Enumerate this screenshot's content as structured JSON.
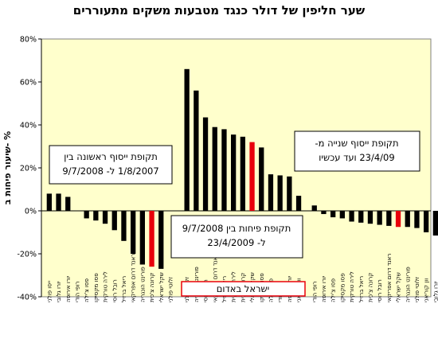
{
  "chart_data": {
    "type": "bar",
    "title": "שער חליפין של דולר כנגד מטבעות משקים מתעוררים",
    "ylabel": "שיעור פיחות ב- %",
    "ylim": [
      -40,
      80
    ],
    "yticks": [
      "80%",
      "60%",
      "40%",
      "20%",
      "0%",
      "-20%",
      "-40%"
    ],
    "grid": false,
    "panels": [
      {
        "name": "תקופת ייסוף ראשונה",
        "categories": [
          "ייסו פולני",
          "יורו גלובי",
          "יורו אירופה",
          "רופי הודי",
          "פסו צ'ילה",
          "פסו מקסיקו",
          "לירה טורקית",
          "רובל רוסי",
          "ריאל ברזיל",
          "ראנד דרום אפריקאי",
          "פורינט הונגריה",
          "קרונה צ'כית",
          "שקל ישראלי",
          "זלוטי פולני"
        ],
        "values": [
          8,
          8,
          6.5,
          0,
          -3.5,
          -4.5,
          -6,
          -9,
          -14,
          -20,
          -25,
          -26,
          -27,
          0
        ],
        "highlight": [
          false,
          false,
          false,
          false,
          false,
          false,
          false,
          false,
          false,
          false,
          false,
          true,
          false,
          false
        ]
      },
      {
        "name": "תקופת פיחות",
        "categories": [
          "זלוטי פולני",
          "פורינט הונגריה",
          "רובל רוסי",
          "ראנד דרום אפריקאי",
          "ריאל ברזיל",
          "לירה טורקית",
          "קרונה צ'כית",
          "שקל ישראלי",
          "פסו מקסיקו",
          "פסו צ'ילה",
          "רופי הודי",
          "יורו אירופה",
          "וון קוריאני"
        ],
        "values": [
          66,
          56,
          43.5,
          39,
          38,
          35.5,
          34.5,
          32,
          29.5,
          17,
          16.5,
          16,
          7
        ],
        "highlight": [
          false,
          false,
          false,
          false,
          false,
          false,
          false,
          true,
          false,
          false,
          false,
          false,
          false
        ]
      },
      {
        "name": "תקופת ייסוף שנייה",
        "categories": [
          "רופי הודי",
          "יורו אירופה",
          "פסו צ'ילה",
          "פסו מקסיקו",
          "לירה טורקית",
          "ריאל ברזיל",
          "קרונה צ'כית",
          "רובל רוסי",
          "ראנד דרום אפריקאי",
          "שקל ישראלי",
          "פורינט הונגריה",
          "זלוטי פולני",
          "וון קוריאני",
          "יורו גלובי",
          "יואן סיני"
        ],
        "values": [
          2.5,
          -1.5,
          -3,
          -3.5,
          -5,
          -5.5,
          -6,
          -6.5,
          -7,
          -7.5,
          -7.5,
          -8,
          -10,
          -11.5,
          -12.5
        ],
        "highlight": [
          false,
          false,
          false,
          false,
          false,
          false,
          false,
          false,
          false,
          true,
          false,
          false,
          false,
          false,
          false
        ]
      }
    ],
    "annotations": {
      "first": {
        "line1": "תקופת ייסוף ראשונה בין",
        "line2": "1/8/2007 ל- 9/7/2008"
      },
      "devaluation": {
        "line1": "תקופת פיחות בין 9/7/2008",
        "line2": "ל- 23/4/2009"
      },
      "second": {
        "line1": "תקופת ייסוף שנייה מ-",
        "line2": "23/4/09 ועד עכשיו"
      },
      "legend": "ישראל באדום"
    },
    "colors": {
      "bar": "#000000",
      "highlight": "#e8000b",
      "plot_bg": "#ffffcc",
      "legend_border": "#e8000b"
    }
  }
}
